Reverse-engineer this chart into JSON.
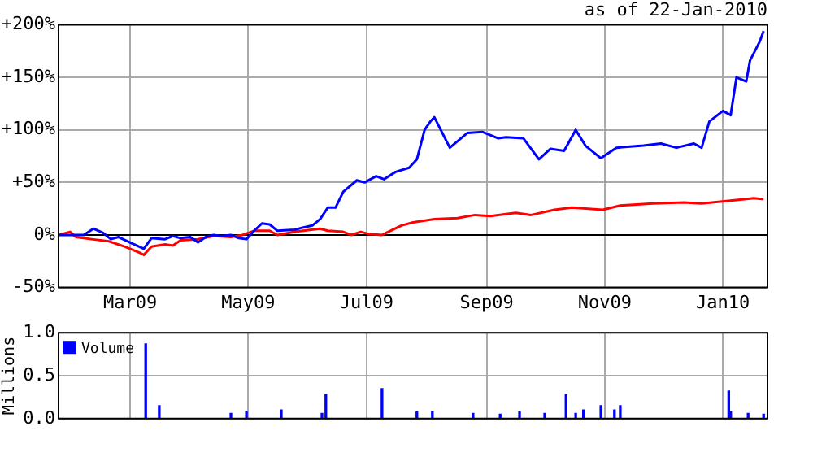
{
  "chart_data": [
    {
      "type": "line",
      "subtitle": "as of 22-Jan-2010",
      "xlim": [
        "2009-01-23",
        "2010-01-24"
      ],
      "xticks": [
        {
          "value": "2009-03-01",
          "label": "Mar09"
        },
        {
          "value": "2009-05-01",
          "label": "May09"
        },
        {
          "value": "2009-07-01",
          "label": "Jul09"
        },
        {
          "value": "2009-09-01",
          "label": "Sep09"
        },
        {
          "value": "2009-11-01",
          "label": "Nov09"
        },
        {
          "value": "2010-01-01",
          "label": "Jan10"
        }
      ],
      "ylim": [
        -50,
        200
      ],
      "yticks": [
        {
          "value": -50,
          "label": "-50%"
        },
        {
          "value": 0,
          "label": "0%"
        },
        {
          "value": 50,
          "label": "+50%"
        },
        {
          "value": 100,
          "label": "+100%"
        },
        {
          "value": 150,
          "label": "+150%"
        },
        {
          "value": 200,
          "label": "+200%"
        }
      ],
      "grid": true,
      "marker": "none",
      "line_style": "solid",
      "ref_lines": [
        {
          "axis": "y",
          "value": 0,
          "color": "#000000"
        }
      ],
      "series": [
        {
          "color": "#0000ff",
          "x": [
            "2009-01-23",
            "2009-02-05",
            "2009-02-10",
            "2009-02-15",
            "2009-02-19",
            "2009-02-23",
            "2009-03-02",
            "2009-03-08",
            "2009-03-12",
            "2009-03-19",
            "2009-03-23",
            "2009-03-27",
            "2009-04-01",
            "2009-04-05",
            "2009-04-09",
            "2009-04-13",
            "2009-04-17",
            "2009-04-22",
            "2009-04-26",
            "2009-04-30",
            "2009-05-04",
            "2009-05-08",
            "2009-05-12",
            "2009-05-16",
            "2009-05-25",
            "2009-05-29",
            "2009-06-03",
            "2009-06-07",
            "2009-06-11",
            "2009-06-15",
            "2009-06-19",
            "2009-06-26",
            "2009-06-30",
            "2009-07-06",
            "2009-07-10",
            "2009-07-16",
            "2009-07-23",
            "2009-07-27",
            "2009-07-31",
            "2009-08-03",
            "2009-08-05",
            "2009-08-13",
            "2009-08-22",
            "2009-08-30",
            "2009-09-07",
            "2009-09-11",
            "2009-09-20",
            "2009-09-28",
            "2009-10-04",
            "2009-10-11",
            "2009-10-17",
            "2009-10-22",
            "2009-10-30",
            "2009-11-07",
            "2009-11-21",
            "2009-11-30",
            "2009-12-08",
            "2009-12-17",
            "2009-12-21",
            "2009-12-25",
            "2010-01-01",
            "2010-01-05",
            "2010-01-08",
            "2010-01-13",
            "2010-01-15",
            "2010-01-20",
            "2010-01-22"
          ],
          "values": [
            0,
            0,
            6,
            2,
            -4,
            -2,
            -8,
            -13,
            -3,
            -4,
            -1,
            -3,
            -2,
            -7,
            -2,
            0,
            -1,
            0,
            -3,
            -4,
            4,
            11,
            10,
            4,
            5,
            7,
            9,
            15,
            26,
            26,
            41,
            52,
            50,
            56,
            53,
            60,
            64,
            72,
            100,
            108,
            112,
            83,
            97,
            98,
            92,
            93,
            92,
            72,
            82,
            80,
            100,
            85,
            73,
            83,
            85,
            87,
            83,
            87,
            83,
            108,
            118,
            114,
            150,
            146,
            166,
            184,
            194
          ]
        },
        {
          "color": "#ff0000",
          "x": [
            "2009-01-23",
            "2009-01-29",
            "2009-02-01",
            "2009-02-09",
            "2009-02-18",
            "2009-02-26",
            "2009-03-06",
            "2009-03-08",
            "2009-03-12",
            "2009-03-19",
            "2009-03-23",
            "2009-03-27",
            "2009-04-05",
            "2009-04-13",
            "2009-04-22",
            "2009-04-28",
            "2009-05-04",
            "2009-05-12",
            "2009-05-16",
            "2009-05-25",
            "2009-06-07",
            "2009-06-11",
            "2009-06-19",
            "2009-06-23",
            "2009-06-28",
            "2009-07-02",
            "2009-07-09",
            "2009-07-19",
            "2009-07-25",
            "2009-08-05",
            "2009-08-17",
            "2009-08-26",
            "2009-09-03",
            "2009-09-16",
            "2009-09-24",
            "2009-10-06",
            "2009-10-15",
            "2009-10-31",
            "2009-11-09",
            "2009-11-26",
            "2009-12-12",
            "2009-12-21",
            "2010-01-07",
            "2010-01-17",
            "2010-01-22"
          ],
          "values": [
            0,
            3,
            -2,
            -4,
            -6,
            -11,
            -17,
            -19,
            -11,
            -9,
            -10,
            -5,
            -4,
            -1,
            -2,
            0,
            4,
            4,
            0,
            3,
            6,
            4,
            3,
            0,
            3,
            1,
            0,
            9,
            12,
            15,
            16,
            19,
            18,
            21,
            19,
            24,
            26,
            24,
            28,
            30,
            31,
            30,
            33,
            35,
            34
          ]
        }
      ]
    },
    {
      "type": "bar",
      "ylabel": "Millions",
      "legend": "top left",
      "tick_labels": "y",
      "grid": true,
      "xlim": [
        "2009-01-23",
        "2010-01-24"
      ],
      "xticks": [
        {
          "value": "2009-03-01",
          "label": null
        },
        {
          "value": "2009-05-01",
          "label": null
        },
        {
          "value": "2009-07-01",
          "label": null
        },
        {
          "value": "2009-09-01",
          "label": null
        },
        {
          "value": "2009-11-01",
          "label": null
        },
        {
          "value": "2010-01-01",
          "label": null
        }
      ],
      "ylim": [
        0,
        1
      ],
      "yticks": [
        {
          "value": 0,
          "label": "0.0"
        },
        {
          "value": 0.5,
          "label": "0.5"
        },
        {
          "value": 1,
          "label": "1.0"
        }
      ],
      "series": [
        {
          "name": "Volume",
          "color": "#0000ff",
          "x": [
            "2009-03-09",
            "2009-03-16",
            "2009-04-22",
            "2009-04-30",
            "2009-05-18",
            "2009-06-08",
            "2009-06-10",
            "2009-07-09",
            "2009-07-27",
            "2009-08-04",
            "2009-08-25",
            "2009-09-08",
            "2009-09-18",
            "2009-10-01",
            "2009-10-12",
            "2009-10-17",
            "2009-10-21",
            "2009-10-30",
            "2009-11-06",
            "2009-11-09",
            "2010-01-04",
            "2010-01-05",
            "2010-01-14",
            "2010-01-22"
          ],
          "values": [
            0.87,
            0.15,
            0.06,
            0.08,
            0.1,
            0.06,
            0.28,
            0.35,
            0.08,
            0.08,
            0.06,
            0.05,
            0.08,
            0.06,
            0.28,
            0.06,
            0.1,
            0.15,
            0.1,
            0.15,
            0.32,
            0.08,
            0.06,
            0.05
          ]
        }
      ]
    }
  ]
}
